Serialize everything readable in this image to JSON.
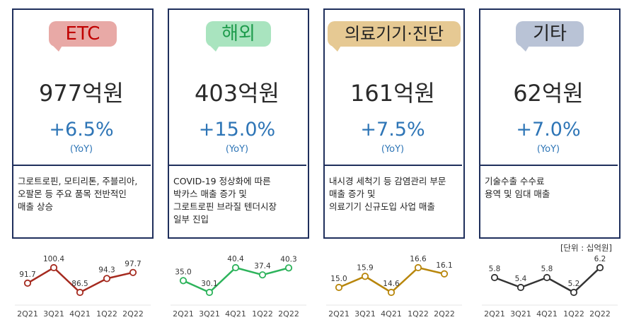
{
  "unit_note": "[단위 : 십억원]",
  "panels": [
    {
      "label": "ETC",
      "label_bg": "#e8a9a6",
      "label_color": "#c00000",
      "amount": "977억원",
      "growth": "+6.5%",
      "yoy": "(YoY)",
      "desc": [
        "그로트로핀, 모티리톤, 주블리아,",
        "오팔몬 등 주요 품목 전반적인",
        "매출 상승"
      ]
    },
    {
      "label": "해외",
      "label_bg": "#a9e4bf",
      "label_color": "#1e9b4c",
      "amount": "403억원",
      "growth": "+15.0%",
      "yoy": "(YoY)",
      "desc": [
        "COVID-19 정상화에 따른",
        "박카스 매출 증가 및",
        "그로트로핀 브라질 텐더시장",
        "일부 진입"
      ]
    },
    {
      "label": "의료기기·진단",
      "label_bg": "#e6c993",
      "label_color": "#222222",
      "amount": "161억원",
      "growth": "+7.5%",
      "yoy": "(YoY)",
      "desc": [
        "내시경 세척기 등 감염관리 부문",
        "매출 증가 및",
        "의료기기 신규도입 사업 매출"
      ]
    },
    {
      "label": "기타",
      "label_bg": "#b9c3d6",
      "label_color": "#222222",
      "amount": "62억원",
      "growth": "+7.0%",
      "yoy": "(YoY)",
      "desc": [
        "기술수출 수수료",
        "용역 및 임대 매출"
      ]
    }
  ],
  "chart_data": [
    {
      "type": "line",
      "categories": [
        "2Q21",
        "3Q21",
        "4Q21",
        "1Q22",
        "2Q22"
      ],
      "series": [
        {
          "values": [
            91.7,
            100.4,
            86.5,
            94.3,
            97.7
          ]
        }
      ],
      "data_labels": [
        "91.7",
        "100.4",
        "86.5",
        "94.3",
        "97.7"
      ],
      "color": "#a52a1f"
    },
    {
      "type": "line",
      "categories": [
        "2Q21",
        "3Q21",
        "4Q21",
        "1Q22",
        "2Q22"
      ],
      "series": [
        {
          "values": [
            35.0,
            30.1,
            40.4,
            37.4,
            40.3
          ]
        }
      ],
      "data_labels": [
        "35.0",
        "30.1",
        "40.4",
        "37.4",
        "40.3"
      ],
      "color": "#2db35b"
    },
    {
      "type": "line",
      "categories": [
        "2Q21",
        "3Q21",
        "4Q21",
        "1Q22",
        "2Q22"
      ],
      "series": [
        {
          "values": [
            15.0,
            15.9,
            14.6,
            16.6,
            16.1
          ]
        }
      ],
      "data_labels": [
        "15.0",
        "15.9",
        "14.6",
        "16.6",
        "16.1"
      ],
      "color": "#b8860b"
    },
    {
      "type": "line",
      "categories": [
        "2Q21",
        "3Q21",
        "4Q21",
        "1Q22",
        "2Q22"
      ],
      "series": [
        {
          "values": [
            5.8,
            5.4,
            5.8,
            5.2,
            6.2
          ]
        }
      ],
      "data_labels": [
        "5.8",
        "5.4",
        "5.8",
        "5.2",
        "6.2"
      ],
      "color": "#333333"
    }
  ]
}
